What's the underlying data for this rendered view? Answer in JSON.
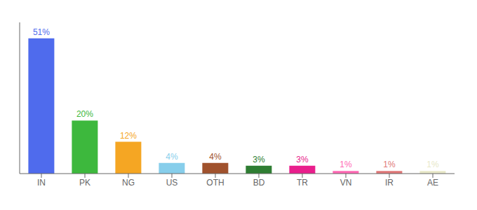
{
  "chart_data": {
    "type": "bar",
    "categories": [
      "IN",
      "PK",
      "NG",
      "US",
      "OTH",
      "BD",
      "TR",
      "VN",
      "IR",
      "AE"
    ],
    "values": [
      51,
      20,
      12,
      4,
      4,
      3,
      3,
      1,
      1,
      1
    ],
    "value_labels": [
      "51%",
      "20%",
      "12%",
      "4%",
      "4%",
      "3%",
      "3%",
      "1%",
      "1%",
      "1%"
    ],
    "colors": [
      "#4f6bed",
      "#3db83d",
      "#f5a623",
      "#87ceeb",
      "#a0522d",
      "#2e7d32",
      "#e91e8c",
      "#ff69b4",
      "#e07878",
      "#e8e8c8"
    ],
    "ylim": [
      0,
      57
    ],
    "data_labels": true,
    "tick_labels": "x"
  }
}
